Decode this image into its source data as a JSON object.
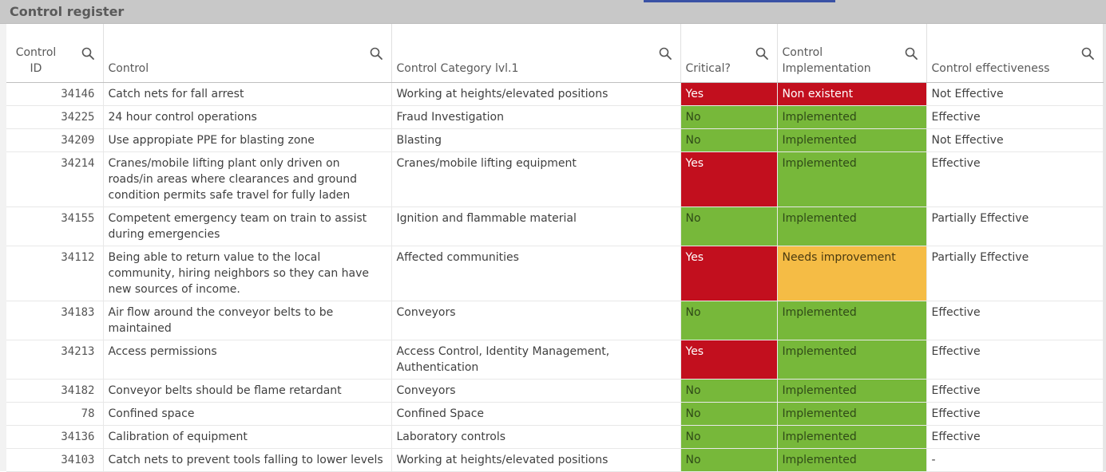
{
  "title": "Control register",
  "colors": {
    "red": "#c20f1e",
    "green": "#77b83a",
    "amber": "#f5bc45",
    "titlebar": "#c8c8c8"
  },
  "columns": [
    {
      "label": "Control ID",
      "icon": "search-icon"
    },
    {
      "label": "Control",
      "icon": "search-icon"
    },
    {
      "label": "Control Category lvl.1",
      "icon": "search-icon"
    },
    {
      "label": "Critical?",
      "icon": "search-icon"
    },
    {
      "label": "Control Implementation",
      "icon": "search-icon"
    },
    {
      "label": "Control effectiveness",
      "icon": "search-icon"
    }
  ],
  "rows": [
    {
      "id": "34146",
      "control": "Catch nets for fall arrest",
      "category": "Working at heights/elevated positions",
      "critical": "Yes",
      "implementation": "Non existent",
      "effectiveness": "Not Effective"
    },
    {
      "id": "34225",
      "control": "24 hour control operations",
      "category": "Fraud Investigation",
      "critical": "No",
      "implementation": "Implemented",
      "effectiveness": "Effective"
    },
    {
      "id": "34209",
      "control": "Use appropiate PPE for blasting zone",
      "category": "Blasting",
      "critical": "No",
      "implementation": "Implemented",
      "effectiveness": "Not Effective"
    },
    {
      "id": "34214",
      "control": "Cranes/mobile lifting plant only driven on roads/in areas where clearances and ground condition permits safe travel for fully laden",
      "category": "Cranes/mobile lifting equipment",
      "critical": "Yes",
      "implementation": "Implemented",
      "effectiveness": "Effective"
    },
    {
      "id": "34155",
      "control": "Competent emergency team on train to assist during emergencies",
      "category": "Ignition and flammable material",
      "critical": "No",
      "implementation": "Implemented",
      "effectiveness": "Partially Effective"
    },
    {
      "id": "34112",
      "control": "Being able to return value to the local community, hiring neighbors so they can have new sources of income.",
      "category": "Affected communities",
      "critical": "Yes",
      "implementation": "Needs improvement",
      "effectiveness": "Partially Effective"
    },
    {
      "id": "34183",
      "control": "Air flow around the conveyor belts to be maintained",
      "category": "Conveyors",
      "critical": "No",
      "implementation": "Implemented",
      "effectiveness": "Effective"
    },
    {
      "id": "34213",
      "control": "Access permissions",
      "category": "Access Control, Identity Management, Authentication",
      "critical": "Yes",
      "implementation": "Implemented",
      "effectiveness": "Effective"
    },
    {
      "id": "34182",
      "control": "Conveyor belts should be flame retardant",
      "category": "Conveyors",
      "critical": "No",
      "implementation": "Implemented",
      "effectiveness": "Effective"
    },
    {
      "id": "78",
      "control": "Confined space",
      "category": "Confined Space",
      "critical": "No",
      "implementation": "Implemented",
      "effectiveness": "Effective"
    },
    {
      "id": "34136",
      "control": "Calibration of equipment",
      "category": "Laboratory controls",
      "critical": "No",
      "implementation": "Implemented",
      "effectiveness": "Effective"
    },
    {
      "id": "34103",
      "control": "Catch nets to prevent tools falling to lower levels",
      "category": "Working at heights/elevated positions",
      "critical": "No",
      "implementation": "Implemented",
      "effectiveness": "-"
    }
  ]
}
